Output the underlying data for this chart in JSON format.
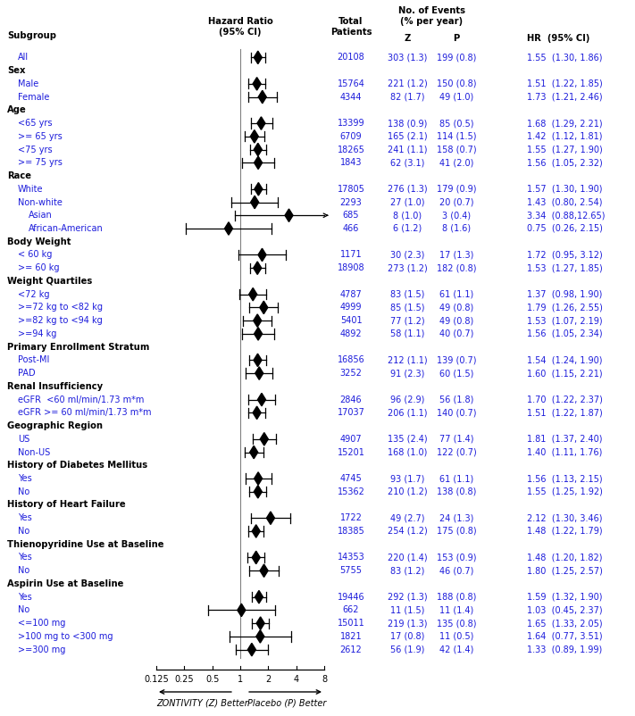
{
  "subgroups": [
    {
      "label": "All",
      "indent": 1,
      "hr": 1.55,
      "lo": 1.3,
      "hi": 1.86,
      "total": "20108",
      "z_events": "303 (1.3)",
      "p_events": "199 (0.8)",
      "hr_text": "1.55  (1.30, 1.86)",
      "is_header": false
    },
    {
      "label": "Sex",
      "indent": 0,
      "hr": null,
      "lo": null,
      "hi": null,
      "total": "",
      "z_events": "",
      "p_events": "",
      "hr_text": "",
      "is_header": true
    },
    {
      "label": "Male",
      "indent": 1,
      "hr": 1.51,
      "lo": 1.22,
      "hi": 1.85,
      "total": "15764",
      "z_events": "221 (1.2)",
      "p_events": "150 (0.8)",
      "hr_text": "1.51  (1.22, 1.85)",
      "is_header": false
    },
    {
      "label": "Female",
      "indent": 1,
      "hr": 1.73,
      "lo": 1.21,
      "hi": 2.46,
      "total": "4344",
      "z_events": "82 (1.7)",
      "p_events": "49 (1.0)",
      "hr_text": "1.73  (1.21, 2.46)",
      "is_header": false
    },
    {
      "label": "Age",
      "indent": 0,
      "hr": null,
      "lo": null,
      "hi": null,
      "total": "",
      "z_events": "",
      "p_events": "",
      "hr_text": "",
      "is_header": true
    },
    {
      "label": "<65 yrs",
      "indent": 1,
      "hr": 1.68,
      "lo": 1.29,
      "hi": 2.21,
      "total": "13399",
      "z_events": "138 (0.9)",
      "p_events": "85 (0.5)",
      "hr_text": "1.68  (1.29, 2.21)",
      "is_header": false
    },
    {
      "label": ">= 65 yrs",
      "indent": 1,
      "hr": 1.42,
      "lo": 1.12,
      "hi": 1.81,
      "total": "6709",
      "z_events": "165 (2.1)",
      "p_events": "114 (1.5)",
      "hr_text": "1.42  (1.12, 1.81)",
      "is_header": false
    },
    {
      "label": "<75 yrs",
      "indent": 1,
      "hr": 1.55,
      "lo": 1.27,
      "hi": 1.9,
      "total": "18265",
      "z_events": "241 (1.1)",
      "p_events": "158 (0.7)",
      "hr_text": "1.55  (1.27, 1.90)",
      "is_header": false
    },
    {
      "label": ">= 75 yrs",
      "indent": 1,
      "hr": 1.56,
      "lo": 1.05,
      "hi": 2.32,
      "total": "1843",
      "z_events": "62 (3.1)",
      "p_events": "41 (2.0)",
      "hr_text": "1.56  (1.05, 2.32)",
      "is_header": false
    },
    {
      "label": "Race",
      "indent": 0,
      "hr": null,
      "lo": null,
      "hi": null,
      "total": "",
      "z_events": "",
      "p_events": "",
      "hr_text": "",
      "is_header": true
    },
    {
      "label": "White",
      "indent": 1,
      "hr": 1.57,
      "lo": 1.3,
      "hi": 1.9,
      "total": "17805",
      "z_events": "276 (1.3)",
      "p_events": "179 (0.9)",
      "hr_text": "1.57  (1.30, 1.90)",
      "is_header": false
    },
    {
      "label": "Non-white",
      "indent": 1,
      "hr": 1.43,
      "lo": 0.8,
      "hi": 2.54,
      "total": "2293",
      "z_events": "27 (1.0)",
      "p_events": "20 (0.7)",
      "hr_text": "1.43  (0.80, 2.54)",
      "is_header": false
    },
    {
      "label": "Asian",
      "indent": 2,
      "hr": 3.34,
      "lo": 0.88,
      "hi": 12.65,
      "total": "685",
      "z_events": "8 (1.0)",
      "p_events": "3 (0.4)",
      "hr_text": "3.34  (0.88,12.65)",
      "is_header": false,
      "arrow_right": true
    },
    {
      "label": "African-American",
      "indent": 2,
      "hr": 0.75,
      "lo": 0.26,
      "hi": 2.15,
      "total": "466",
      "z_events": "6 (1.2)",
      "p_events": "8 (1.6)",
      "hr_text": "0.75  (0.26, 2.15)",
      "is_header": false
    },
    {
      "label": "Body Weight",
      "indent": 0,
      "hr": null,
      "lo": null,
      "hi": null,
      "total": "",
      "z_events": "",
      "p_events": "",
      "hr_text": "",
      "is_header": true
    },
    {
      "label": "< 60 kg",
      "indent": 1,
      "hr": 1.72,
      "lo": 0.95,
      "hi": 3.12,
      "total": "1171",
      "z_events": "30 (2.3)",
      "p_events": "17 (1.3)",
      "hr_text": "1.72  (0.95, 3.12)",
      "is_header": false
    },
    {
      "label": ">= 60 kg",
      "indent": 1,
      "hr": 1.53,
      "lo": 1.27,
      "hi": 1.85,
      "total": "18908",
      "z_events": "273 (1.2)",
      "p_events": "182 (0.8)",
      "hr_text": "1.53  (1.27, 1.85)",
      "is_header": false
    },
    {
      "label": "Weight Quartiles",
      "indent": 0,
      "hr": null,
      "lo": null,
      "hi": null,
      "total": "",
      "z_events": "",
      "p_events": "",
      "hr_text": "",
      "is_header": true
    },
    {
      "label": "<72 kg",
      "indent": 1,
      "hr": 1.37,
      "lo": 0.98,
      "hi": 1.9,
      "total": "4787",
      "z_events": "83 (1.5)",
      "p_events": "61 (1.1)",
      "hr_text": "1.37  (0.98, 1.90)",
      "is_header": false
    },
    {
      "label": ">=72 kg to <82 kg",
      "indent": 1,
      "hr": 1.79,
      "lo": 1.26,
      "hi": 2.55,
      "total": "4999",
      "z_events": "85 (1.5)",
      "p_events": "49 (0.8)",
      "hr_text": "1.79  (1.26, 2.55)",
      "is_header": false
    },
    {
      "label": ">=82 kg to <94 kg",
      "indent": 1,
      "hr": 1.53,
      "lo": 1.07,
      "hi": 2.19,
      "total": "5401",
      "z_events": "77 (1.2)",
      "p_events": "49 (0.8)",
      "hr_text": "1.53  (1.07, 2.19)",
      "is_header": false
    },
    {
      "label": ">=94 kg",
      "indent": 1,
      "hr": 1.56,
      "lo": 1.05,
      "hi": 2.34,
      "total": "4892",
      "z_events": "58 (1.1)",
      "p_events": "40 (0.7)",
      "hr_text": "1.56  (1.05, 2.34)",
      "is_header": false
    },
    {
      "label": "Primary Enrollment Stratum",
      "indent": 0,
      "hr": null,
      "lo": null,
      "hi": null,
      "total": "",
      "z_events": "",
      "p_events": "",
      "hr_text": "",
      "is_header": true
    },
    {
      "label": "Post-MI",
      "indent": 1,
      "hr": 1.54,
      "lo": 1.24,
      "hi": 1.9,
      "total": "16856",
      "z_events": "212 (1.1)",
      "p_events": "139 (0.7)",
      "hr_text": "1.54  (1.24, 1.90)",
      "is_header": false
    },
    {
      "label": "PAD",
      "indent": 1,
      "hr": 1.6,
      "lo": 1.15,
      "hi": 2.21,
      "total": "3252",
      "z_events": "91 (2.3)",
      "p_events": "60 (1.5)",
      "hr_text": "1.60  (1.15, 2.21)",
      "is_header": false
    },
    {
      "label": "Renal Insufficiency",
      "indent": 0,
      "hr": null,
      "lo": null,
      "hi": null,
      "total": "",
      "z_events": "",
      "p_events": "",
      "hr_text": "",
      "is_header": true
    },
    {
      "label": "eGFR  <60 ml/min/1.73 m*m",
      "indent": 1,
      "hr": 1.7,
      "lo": 1.22,
      "hi": 2.37,
      "total": "2846",
      "z_events": "96 (2.9)",
      "p_events": "56 (1.8)",
      "hr_text": "1.70  (1.22, 2.37)",
      "is_header": false
    },
    {
      "label": "eGFR >= 60 ml/min/1.73 m*m",
      "indent": 1,
      "hr": 1.51,
      "lo": 1.22,
      "hi": 1.87,
      "total": "17037",
      "z_events": "206 (1.1)",
      "p_events": "140 (0.7)",
      "hr_text": "1.51  (1.22, 1.87)",
      "is_header": false
    },
    {
      "label": "Geographic Region",
      "indent": 0,
      "hr": null,
      "lo": null,
      "hi": null,
      "total": "",
      "z_events": "",
      "p_events": "",
      "hr_text": "",
      "is_header": true
    },
    {
      "label": "US",
      "indent": 1,
      "hr": 1.81,
      "lo": 1.37,
      "hi": 2.4,
      "total": "4907",
      "z_events": "135 (2.4)",
      "p_events": "77 (1.4)",
      "hr_text": "1.81  (1.37, 2.40)",
      "is_header": false
    },
    {
      "label": "Non-US",
      "indent": 1,
      "hr": 1.4,
      "lo": 1.11,
      "hi": 1.76,
      "total": "15201",
      "z_events": "168 (1.0)",
      "p_events": "122 (0.7)",
      "hr_text": "1.40  (1.11, 1.76)",
      "is_header": false
    },
    {
      "label": "History of Diabetes Mellitus",
      "indent": 0,
      "hr": null,
      "lo": null,
      "hi": null,
      "total": "",
      "z_events": "",
      "p_events": "",
      "hr_text": "",
      "is_header": true
    },
    {
      "label": "Yes",
      "indent": 1,
      "hr": 1.56,
      "lo": 1.13,
      "hi": 2.15,
      "total": "4745",
      "z_events": "93 (1.7)",
      "p_events": "61 (1.1)",
      "hr_text": "1.56  (1.13, 2.15)",
      "is_header": false
    },
    {
      "label": "No",
      "indent": 1,
      "hr": 1.55,
      "lo": 1.25,
      "hi": 1.92,
      "total": "15362",
      "z_events": "210 (1.2)",
      "p_events": "138 (0.8)",
      "hr_text": "1.55  (1.25, 1.92)",
      "is_header": false
    },
    {
      "label": "History of Heart Failure",
      "indent": 0,
      "hr": null,
      "lo": null,
      "hi": null,
      "total": "",
      "z_events": "",
      "p_events": "",
      "hr_text": "",
      "is_header": true
    },
    {
      "label": "Yes",
      "indent": 1,
      "hr": 2.12,
      "lo": 1.3,
      "hi": 3.46,
      "total": "1722",
      "z_events": "49 (2.7)",
      "p_events": "24 (1.3)",
      "hr_text": "2.12  (1.30, 3.46)",
      "is_header": false
    },
    {
      "label": "No",
      "indent": 1,
      "hr": 1.48,
      "lo": 1.22,
      "hi": 1.79,
      "total": "18385",
      "z_events": "254 (1.2)",
      "p_events": "175 (0.8)",
      "hr_text": "1.48  (1.22, 1.79)",
      "is_header": false
    },
    {
      "label": "Thienopyridine Use at Baseline",
      "indent": 0,
      "hr": null,
      "lo": null,
      "hi": null,
      "total": "",
      "z_events": "",
      "p_events": "",
      "hr_text": "",
      "is_header": true
    },
    {
      "label": "Yes",
      "indent": 1,
      "hr": 1.48,
      "lo": 1.2,
      "hi": 1.82,
      "total": "14353",
      "z_events": "220 (1.4)",
      "p_events": "153 (0.9)",
      "hr_text": "1.48  (1.20, 1.82)",
      "is_header": false
    },
    {
      "label": "No",
      "indent": 1,
      "hr": 1.8,
      "lo": 1.25,
      "hi": 2.57,
      "total": "5755",
      "z_events": "83 (1.2)",
      "p_events": "46 (0.7)",
      "hr_text": "1.80  (1.25, 2.57)",
      "is_header": false
    },
    {
      "label": "Aspirin Use at Baseline",
      "indent": 0,
      "hr": null,
      "lo": null,
      "hi": null,
      "total": "",
      "z_events": "",
      "p_events": "",
      "hr_text": "",
      "is_header": true
    },
    {
      "label": "Yes",
      "indent": 1,
      "hr": 1.59,
      "lo": 1.32,
      "hi": 1.9,
      "total": "19446",
      "z_events": "292 (1.3)",
      "p_events": "188 (0.8)",
      "hr_text": "1.59  (1.32, 1.90)",
      "is_header": false
    },
    {
      "label": "No",
      "indent": 1,
      "hr": 1.03,
      "lo": 0.45,
      "hi": 2.37,
      "total": "662",
      "z_events": "11 (1.5)",
      "p_events": "11 (1.4)",
      "hr_text": "1.03  (0.45, 2.37)",
      "is_header": false
    },
    {
      "label": "<=100 mg",
      "indent": 1,
      "hr": 1.65,
      "lo": 1.33,
      "hi": 2.05,
      "total": "15011",
      "z_events": "219 (1.3)",
      "p_events": "135 (0.8)",
      "hr_text": "1.65  (1.33, 2.05)",
      "is_header": false
    },
    {
      "label": ">100 mg to <300 mg",
      "indent": 1,
      "hr": 1.64,
      "lo": 0.77,
      "hi": 3.51,
      "total": "1821",
      "z_events": "17 (0.8)",
      "p_events": "11 (0.5)",
      "hr_text": "1.64  (0.77, 3.51)",
      "is_header": false
    },
    {
      "label": ">=300 mg",
      "indent": 1,
      "hr": 1.33,
      "lo": 0.89,
      "hi": 1.99,
      "total": "2612",
      "z_events": "56 (1.9)",
      "p_events": "42 (1.4)",
      "hr_text": "1.33  (0.89, 1.99)",
      "is_header": false
    }
  ],
  "xscale_ticks": [
    0.125,
    0.25,
    0.5,
    1,
    2,
    4,
    8
  ],
  "xscale_labels": [
    "0.125",
    "0.25",
    "0.5",
    "1",
    "2",
    "4",
    "8"
  ],
  "text_color": "#1a1aff",
  "header_color": "#000000",
  "line_color": "#000000"
}
